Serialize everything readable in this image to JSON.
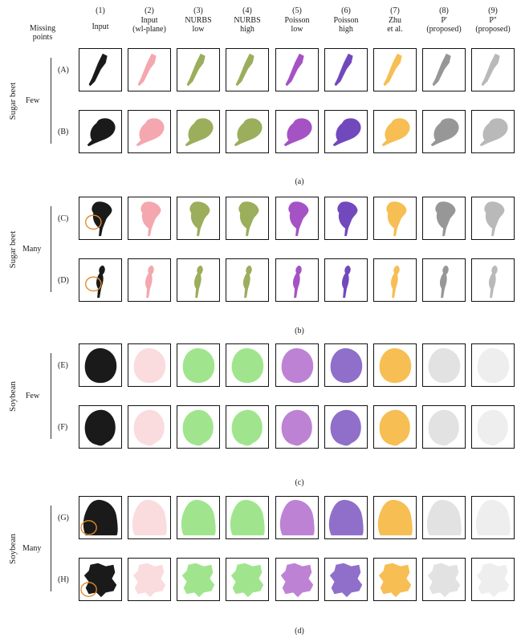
{
  "header": {
    "missing_points": "Missing\npoints",
    "columns": [
      {
        "num": "(1)",
        "label": "Input"
      },
      {
        "num": "(2)",
        "label": "Input\n(wl-plane)"
      },
      {
        "num": "(3)",
        "label": "NURBS\nlow"
      },
      {
        "num": "(4)",
        "label": "NURBS\nhigh"
      },
      {
        "num": "(5)",
        "label": "Poisson\nlow"
      },
      {
        "num": "(6)",
        "label": "Poisson\nhigh"
      },
      {
        "num": "(7)",
        "label": "Zhu\net al."
      },
      {
        "num": "(8)",
        "label": "P'\n(proposed)"
      },
      {
        "num": "(9)",
        "label": "P''\n(proposed)"
      }
    ]
  },
  "panels": [
    {
      "species": "Sugar beet",
      "amount": "Few",
      "caption": "(a)",
      "rows": [
        {
          "label": "(A)",
          "shape": "beet_thin"
        },
        {
          "label": "(B)",
          "shape": "beet_wide"
        }
      ]
    },
    {
      "species": "Sugar beet",
      "amount": "Many",
      "caption": "(b)",
      "rows": [
        {
          "label": "(C)",
          "shape": "beet_many1"
        },
        {
          "label": "(D)",
          "shape": "beet_many2"
        }
      ]
    },
    {
      "species": "Soybean",
      "amount": "Few",
      "caption": "(c)",
      "rows": [
        {
          "label": "(E)",
          "shape": "soy_oval"
        },
        {
          "label": "(F)",
          "shape": "soy_round"
        }
      ]
    },
    {
      "species": "Soybean",
      "amount": "Many",
      "caption": "(d)",
      "rows": [
        {
          "label": "(G)",
          "shape": "soy_arch"
        },
        {
          "label": "(H)",
          "shape": "soy_ragged"
        }
      ]
    }
  ],
  "colors": {
    "input": "#1a1a1a",
    "wl_plane": "#f08a93",
    "nurbs_beet": "#8aa040",
    "nurbs_soy": "#8fe07a",
    "poisson_low": "#9b3fbf",
    "poisson_high": "#6a3fb8",
    "zhu": "#f5b335",
    "p1": "#8c8c8c",
    "p2": "#a8a8a8"
  }
}
